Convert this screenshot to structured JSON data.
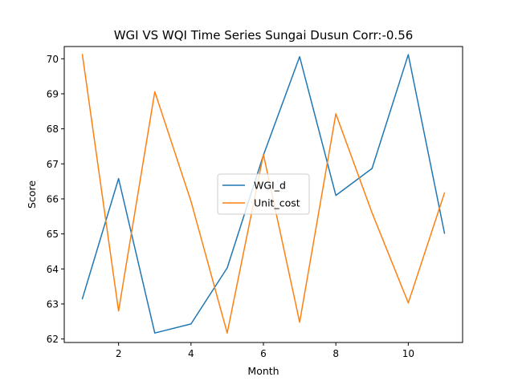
{
  "chart_data": {
    "type": "line",
    "title": "WGI VS WQI Time Series Sungai Dusun Corr:-0.56",
    "xlabel": "Month",
    "ylabel": "Score",
    "xlim": [
      0.5,
      11.5
    ],
    "ylim": [
      61.9,
      70.35
    ],
    "xticks": [
      2,
      4,
      6,
      8,
      10
    ],
    "yticks": [
      62,
      63,
      64,
      65,
      66,
      67,
      68,
      69,
      70
    ],
    "legend_position": "center-right",
    "grid": false,
    "x": [
      1,
      2,
      3,
      4,
      5,
      6,
      7,
      8,
      9,
      10,
      11
    ],
    "series": [
      {
        "name": "WGI_d",
        "color": "#1f77b4",
        "values": [
          63.15,
          66.58,
          62.17,
          62.43,
          64.03,
          67.25,
          70.06,
          66.1,
          66.87,
          70.12,
          65.02
        ]
      },
      {
        "name": "Unit_cost",
        "color": "#ff7f0e",
        "values": [
          70.12,
          62.8,
          69.06,
          65.93,
          62.17,
          67.27,
          62.48,
          68.43,
          65.6,
          63.03,
          66.17
        ]
      }
    ]
  }
}
